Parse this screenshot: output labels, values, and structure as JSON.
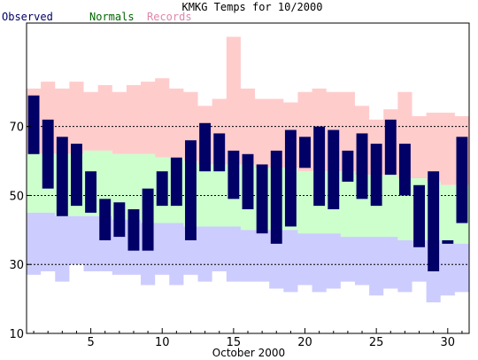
{
  "chart_data": {
    "type": "bar",
    "title": "KMKG Temps for 10/2000",
    "xlabel": "October 2000",
    "ylabel": "",
    "ylim": [
      10,
      100
    ],
    "xlim": [
      0.5,
      31.5
    ],
    "yticks": [
      10,
      30,
      50,
      70
    ],
    "xticks": [
      5,
      10,
      15,
      20,
      25,
      30
    ],
    "gridlines_y": [
      30,
      50,
      70
    ],
    "legend": {
      "placement": "top-left",
      "entries": [
        {
          "label": "Observed",
          "color": "#000066"
        },
        {
          "label": "Normals",
          "color": "#006600"
        },
        {
          "label": "Records",
          "color": "#dd88aa"
        }
      ]
    },
    "colors": {
      "records": "#ffcccc",
      "normals": "#ccffcc",
      "normals_low": "#ccccff",
      "observed": "#000066"
    },
    "days": [
      1,
      2,
      3,
      4,
      5,
      6,
      7,
      8,
      9,
      10,
      11,
      12,
      13,
      14,
      15,
      16,
      17,
      18,
      19,
      20,
      21,
      22,
      23,
      24,
      25,
      26,
      27,
      28,
      29,
      30,
      31
    ],
    "series": [
      {
        "name": "Observed",
        "high": [
          79,
          72,
          67,
          65,
          57,
          49,
          48,
          46,
          52,
          57,
          61,
          66,
          71,
          68,
          63,
          62,
          59,
          63,
          69,
          67,
          70,
          69,
          63,
          68,
          65,
          72,
          65,
          53,
          57,
          37,
          67
        ],
        "low": [
          62,
          52,
          44,
          47,
          45,
          37,
          38,
          34,
          34,
          47,
          47,
          37,
          57,
          57,
          49,
          46,
          39,
          36,
          41,
          58,
          47,
          46,
          54,
          49,
          47,
          56,
          50,
          35,
          28,
          36,
          42
        ]
      },
      {
        "name": "Normals",
        "high": [
          62,
          62,
          62,
          62,
          63,
          63,
          62,
          62,
          62,
          61,
          61,
          60,
          59,
          59,
          59,
          59,
          58,
          58,
          58,
          57,
          57,
          57,
          57,
          56,
          56,
          56,
          55,
          55,
          54,
          53,
          53
        ],
        "low": [
          45,
          45,
          44,
          44,
          44,
          44,
          43,
          43,
          42,
          42,
          42,
          41,
          41,
          41,
          41,
          40,
          40,
          40,
          40,
          39,
          39,
          39,
          38,
          38,
          38,
          38,
          37,
          37,
          37,
          36,
          36
        ]
      },
      {
        "name": "Records",
        "high": [
          81,
          83,
          81,
          83,
          80,
          82,
          80,
          82,
          83,
          84,
          81,
          80,
          76,
          78,
          96,
          81,
          78,
          78,
          77,
          80,
          81,
          80,
          80,
          76,
          72,
          75,
          80,
          73,
          74,
          74,
          73
        ],
        "low": [
          27,
          28,
          25,
          30,
          28,
          28,
          27,
          27,
          24,
          27,
          24,
          27,
          25,
          28,
          25,
          25,
          25,
          23,
          22,
          24,
          22,
          23,
          25,
          24,
          21,
          23,
          22,
          25,
          19,
          21,
          22
        ]
      }
    ]
  }
}
